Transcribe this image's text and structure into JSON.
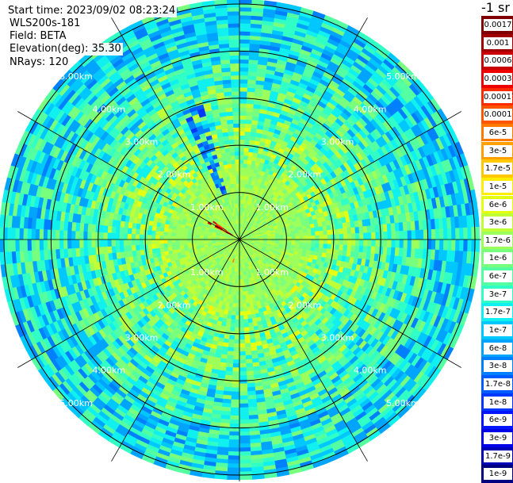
{
  "info": {
    "start_time": "Start time: 2023/09/02 08:23:24",
    "instrument": "WLS200s-181",
    "field": "Field: BETA",
    "elevation": "Elevation(deg): 35.30",
    "nrays": "NRays: 120"
  },
  "colorbar": {
    "title": "-1 sr",
    "labels": [
      "0.0017",
      "0.001",
      "0.0006",
      "0.0003",
      "0.00017",
      "0.0001",
      "6e-5",
      "3e-5",
      "1.7e-5",
      "1e-5",
      "6e-6",
      "3e-6",
      "1.7e-6",
      "1e-6",
      "6e-7",
      "3e-7",
      "1.7e-7",
      "1e-7",
      "6e-8",
      "3e-8",
      "1.7e-8",
      "1e-8",
      "6e-9",
      "3e-9",
      "1.7e-9",
      "1e-9"
    ],
    "colors": [
      "#800000",
      "#a00000",
      "#c80000",
      "#ee0000",
      "#ff2a00",
      "#ff5500",
      "#ff7a00",
      "#ffa000",
      "#ffc800",
      "#ffee00",
      "#e4ff12",
      "#c0ff36",
      "#9cff5a",
      "#78ff7e",
      "#54ffa2",
      "#30ffc6",
      "#10f0ee",
      "#00c8ff",
      "#00a4ff",
      "#0080ff",
      "#005cff",
      "#0038ff",
      "#0014ff",
      "#0000e8",
      "#0000b4",
      "#000080"
    ]
  },
  "chart_data": {
    "type": "heatmap",
    "projection": "polar (PPI scan)",
    "field": "BETA",
    "ranges_km": [
      1.0,
      2.0,
      3.0,
      4.0,
      5.0
    ],
    "range_labels": [
      "1.00km",
      "2.00km",
      "3.00km",
      "4.00km",
      "5.00km"
    ],
    "max_range_km": 5.1,
    "n_rays": 120,
    "radial_lines_deg": [
      0,
      30,
      60,
      90,
      120,
      150,
      180,
      210,
      240,
      270,
      300,
      330
    ],
    "colormap": "jet",
    "scale": "log",
    "value_range": [
      1e-09,
      0.0017
    ],
    "typical_levels": [
      {
        "range_km": [
          0.0,
          1.6
        ],
        "value": 1.7e-06
      },
      {
        "range_km": [
          1.6,
          2.4
        ],
        "value": 1e-06
      },
      {
        "range_km": [
          2.4,
          3.2
        ],
        "value": 6e-07
      },
      {
        "range_km": [
          3.2,
          4.0
        ],
        "value": 3e-07
      },
      {
        "range_km": [
          4.0,
          5.1
        ],
        "value": 1.7e-07
      }
    ],
    "notable_features": [
      {
        "azimuth_deg": 302,
        "range_km": [
          0.2,
          0.8
        ],
        "value": 0.0003
      },
      {
        "azimuth_deg": 340,
        "range_km": [
          1.0,
          3.0
        ],
        "value": 3e-08
      },
      {
        "azimuth_deg": 195,
        "range_km": [
          0.3,
          0.5
        ],
        "value": 3e-05
      }
    ]
  }
}
